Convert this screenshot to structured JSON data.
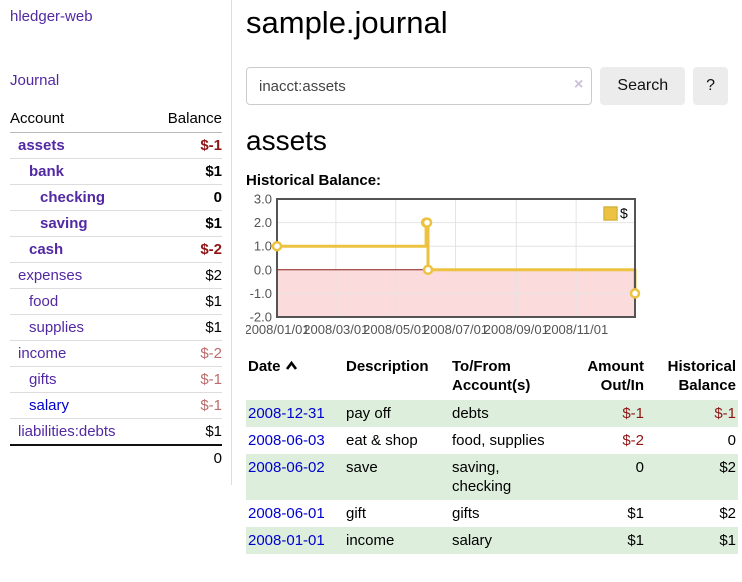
{
  "app": {
    "brand": "hledger-web"
  },
  "colors": {
    "link_purple": "#5229a3",
    "link_blue": "#0000cc",
    "negative_strong": "#8f1515",
    "negative_dim": "#bc6c6c",
    "row_shade_green": "#ddeedd",
    "chart_line": "#edc240",
    "chart_line_border": "#d7b53c",
    "chart_negative_region": "#fbdbdb",
    "chart_zero_line": "#8b1a1a",
    "chart_frame": "#545454",
    "chart_grid": "#e4e4e4",
    "chart_tick_text": "#545454"
  },
  "sidebar": {
    "journal_label": "Journal",
    "accounts_table": {
      "account_header": "Account",
      "balance_header": "Balance",
      "rows": [
        {
          "account": "assets",
          "balance": "$-1",
          "level": 1,
          "strong": true,
          "link": "purple",
          "tone": "negative"
        },
        {
          "account": "bank",
          "balance": "$1",
          "level": 2,
          "strong": true,
          "link": "purple",
          "tone": "normal"
        },
        {
          "account": "checking",
          "balance": "0",
          "level": 3,
          "strong": true,
          "link": "purple",
          "tone": "normal"
        },
        {
          "account": "saving",
          "balance": "$1",
          "level": 3,
          "strong": true,
          "link": "purple",
          "tone": "normal"
        },
        {
          "account": "cash",
          "balance": "$-2",
          "level": 2,
          "strong": true,
          "link": "purple",
          "tone": "negative"
        },
        {
          "account": "expenses",
          "balance": "$2",
          "level": 1,
          "strong": false,
          "link": "purple",
          "tone": "normal"
        },
        {
          "account": "food",
          "balance": "$1",
          "level": 2,
          "strong": false,
          "link": "purple",
          "tone": "normal"
        },
        {
          "account": "supplies",
          "balance": "$1",
          "level": 2,
          "strong": false,
          "link": "purple",
          "tone": "normal"
        },
        {
          "account": "income",
          "balance": "$-2",
          "level": 1,
          "strong": false,
          "link": "purple",
          "tone": "negative-dim"
        },
        {
          "account": "gifts",
          "balance": "$-1",
          "level": 2,
          "strong": false,
          "link": "purple",
          "tone": "negative-dim"
        },
        {
          "account": "salary",
          "balance": "$-1",
          "level": 2,
          "strong": false,
          "link": "blue",
          "tone": "negative-dim"
        },
        {
          "account": "liabilities:debts",
          "balance": "$1",
          "level": 1,
          "strong": false,
          "link": "purple",
          "tone": "normal"
        }
      ],
      "total": "0"
    }
  },
  "main": {
    "title": "sample.journal",
    "search": {
      "value": "inacct:assets",
      "clear_icon": "×",
      "button_label": "Search",
      "help_label": "?"
    },
    "account_heading": "assets",
    "chart_label": "Historical Balance:",
    "register": {
      "headers": [
        {
          "label": "Date",
          "sort": true,
          "align": "left"
        },
        {
          "label": "Description",
          "align": "left"
        },
        {
          "label": "To/From Account(s)",
          "align": "left"
        },
        {
          "label": "Amount Out/In",
          "align": "right"
        },
        {
          "label": "Historical Balance",
          "align": "right"
        }
      ],
      "rows": [
        {
          "date": "2008-12-31",
          "description": "pay off",
          "accounts": "debts",
          "amount": "$-1",
          "balance": "$-1"
        },
        {
          "date": "2008-06-03",
          "description": "eat & shop",
          "accounts": "food, supplies",
          "amount": "$-2",
          "balance": "0"
        },
        {
          "date": "2008-06-02",
          "description": "save",
          "accounts": "saving, checking",
          "amount": "0",
          "balance": "$2"
        },
        {
          "date": "2008-06-01",
          "description": "gift",
          "accounts": "gifts",
          "amount": "$1",
          "balance": "$2"
        },
        {
          "date": "2008-01-01",
          "description": "income",
          "accounts": "salary",
          "amount": "$1",
          "balance": "$1"
        }
      ]
    }
  },
  "chart_data": {
    "type": "line",
    "style": "step",
    "title": "Historical Balance:",
    "legend": {
      "label": "$",
      "position": "top-right"
    },
    "series": [
      {
        "name": "$",
        "points": [
          {
            "date": "2008/01/01",
            "day": 0,
            "value": 1
          },
          {
            "date": "2008/06/01",
            "day": 152,
            "value": 2
          },
          {
            "date": "2008/06/02",
            "day": 153,
            "value": 2
          },
          {
            "date": "2008/06/03",
            "day": 154,
            "value": 0
          },
          {
            "date": "2008/12/31",
            "day": 365,
            "value": -1
          }
        ]
      }
    ],
    "xlim_days": [
      0,
      365
    ],
    "ylim": [
      -2,
      3
    ],
    "x_ticks": [
      {
        "label": "2008/01/01",
        "day": 0
      },
      {
        "label": "2008/03/01",
        "day": 60
      },
      {
        "label": "2008/05/01",
        "day": 121
      },
      {
        "label": "2008/07/01",
        "day": 182
      },
      {
        "label": "2008/09/01",
        "day": 244
      },
      {
        "label": "2008/11/01",
        "day": 305
      }
    ],
    "y_ticks": [
      {
        "label": "3.0",
        "value": 3
      },
      {
        "label": "2.0",
        "value": 2
      },
      {
        "label": "1.0",
        "value": 1
      },
      {
        "label": "0.0",
        "value": 0
      },
      {
        "label": "-1.0",
        "value": -1
      },
      {
        "label": "-2.0",
        "value": -2
      }
    ],
    "grid": true,
    "negative_region_below": 0
  }
}
